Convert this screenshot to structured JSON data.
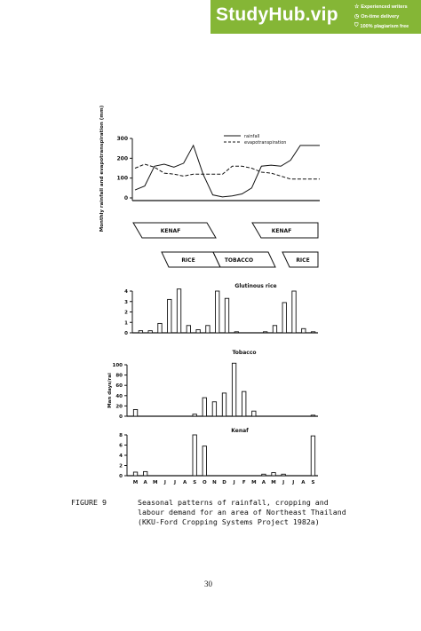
{
  "banner": {
    "brand": "StudyHub.vip",
    "features": [
      {
        "icon": "star-icon",
        "text": "Experienced writers",
        "glyph": "☆"
      },
      {
        "icon": "clock-icon",
        "text": "On-time delivery",
        "glyph": "◷"
      },
      {
        "icon": "shield-check-icon",
        "text": "100% plagiarism free",
        "glyph": "⛉"
      }
    ],
    "color": "#85b636"
  },
  "chart_data": [
    {
      "type": "line",
      "ylabel": "Monthly rainfall and evapotranspiration (mm)",
      "yticks": [
        "0",
        "100",
        "200",
        "300"
      ],
      "ylim": [
        0,
        300
      ],
      "x": [
        1,
        2,
        3,
        4,
        5,
        6,
        7,
        8,
        9,
        10,
        11,
        12,
        13,
        14,
        15,
        16,
        17,
        18,
        19,
        20
      ],
      "series": [
        {
          "name": "rainfall",
          "style": "solid",
          "values": [
            40,
            60,
            160,
            170,
            155,
            175,
            265,
            120,
            15,
            5,
            10,
            20,
            50,
            160,
            165,
            160,
            190,
            265,
            265,
            265
          ]
        },
        {
          "name": "evapotranspiration",
          "style": "dashed",
          "values": [
            150,
            170,
            155,
            125,
            120,
            110,
            120,
            120,
            120,
            120,
            160,
            160,
            150,
            130,
            125,
            110,
            95,
            95,
            95,
            95
          ]
        }
      ]
    },
    {
      "type": "bar",
      "title": "Glutinous rice",
      "yticks": [
        "0",
        "1",
        "2",
        "3",
        "4"
      ],
      "ylim": [
        0,
        4
      ],
      "categories": [
        "M",
        "A",
        "M",
        "J",
        "J",
        "A",
        "S",
        "O",
        "N",
        "D",
        "J",
        "F",
        "M",
        "A",
        "M",
        "J",
        "J",
        "A",
        "S"
      ],
      "values": [
        0.2,
        0.2,
        0.9,
        3.2,
        4.2,
        0.7,
        0.3,
        0.7,
        4.0,
        3.3,
        0.1,
        0,
        0,
        0.1,
        0.7,
        2.9,
        4.0,
        0.4,
        0.1
      ]
    },
    {
      "type": "bar",
      "title": "Tobacco",
      "ylabel": "Man days/rai",
      "yticks": [
        "0",
        "20",
        "40",
        "60",
        "80",
        "100"
      ],
      "ylim": [
        0,
        100
      ],
      "categories": [
        "M",
        "A",
        "M",
        "J",
        "J",
        "A",
        "S",
        "O",
        "N",
        "D",
        "J",
        "F",
        "M",
        "A",
        "M",
        "J",
        "J",
        "A",
        "S"
      ],
      "values": [
        13,
        0,
        0,
        0,
        0,
        0,
        4,
        36,
        28,
        45,
        103,
        48,
        10,
        0,
        0,
        0,
        0,
        0,
        2
      ]
    },
    {
      "type": "bar",
      "title": "Kenaf",
      "yticks": [
        "0",
        "2",
        "4",
        "6",
        "8"
      ],
      "ylim": [
        0,
        8
      ],
      "categories": [
        "M",
        "A",
        "M",
        "J",
        "J",
        "A",
        "S",
        "O",
        "N",
        "D",
        "J",
        "F",
        "M",
        "A",
        "M",
        "J",
        "J",
        "A",
        "S"
      ],
      "values": [
        0.7,
        0.8,
        0,
        0,
        0,
        0,
        8,
        5.8,
        0,
        0,
        0,
        0,
        0,
        0.3,
        0.6,
        0.3,
        0,
        0,
        7.8
      ]
    }
  ],
  "crops": {
    "row1": [
      "KENAF",
      "KENAF"
    ],
    "row2": [
      "RICE",
      "TOBACCO",
      "RICE"
    ]
  },
  "x_month_labels": [
    "M",
    "A",
    "M",
    "J",
    "J",
    "A",
    "S",
    "O",
    "N",
    "D",
    "J",
    "F",
    "M",
    "A",
    "M",
    "J",
    "J",
    "A",
    "S"
  ],
  "caption": {
    "label": "FIGURE 9",
    "lines": [
      "Seasonal patterns of rainfall, cropping and",
      "labour demand for an area of Northeast Thailand",
      "(KKU-Ford Cropping Systems Project 1982a)"
    ]
  },
  "page_number": "30"
}
